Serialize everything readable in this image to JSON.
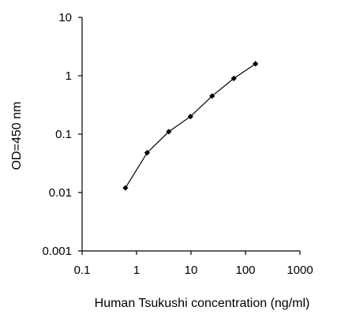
{
  "chart_data": {
    "type": "line",
    "title": "",
    "xlabel": "Human Tsukushi concentration (ng/ml)",
    "ylabel": "OD=450 nm",
    "xscale": "log",
    "yscale": "log",
    "xlim": [
      0.1,
      1000
    ],
    "ylim": [
      0.001,
      10
    ],
    "x_ticks": [
      0.1,
      1,
      10,
      100,
      1000
    ],
    "x_tick_labels": [
      "0.1",
      "1",
      "10",
      "100",
      "1000"
    ],
    "y_ticks": [
      0.001,
      0.01,
      0.1,
      1,
      10
    ],
    "y_tick_labels": [
      "0.001",
      "0.01",
      "0.1",
      "1",
      "10"
    ],
    "grid": false,
    "legend": "none",
    "marker": "diamond",
    "color": "#000000",
    "series": [
      {
        "x": [
          0.625,
          1.5625,
          3.90625,
          9.765625,
          24.4140625,
          61.03515625,
          152.587890625
        ],
        "y": [
          0.012,
          0.048,
          0.11,
          0.2,
          0.45,
          0.9,
          1.6
        ]
      }
    ]
  }
}
